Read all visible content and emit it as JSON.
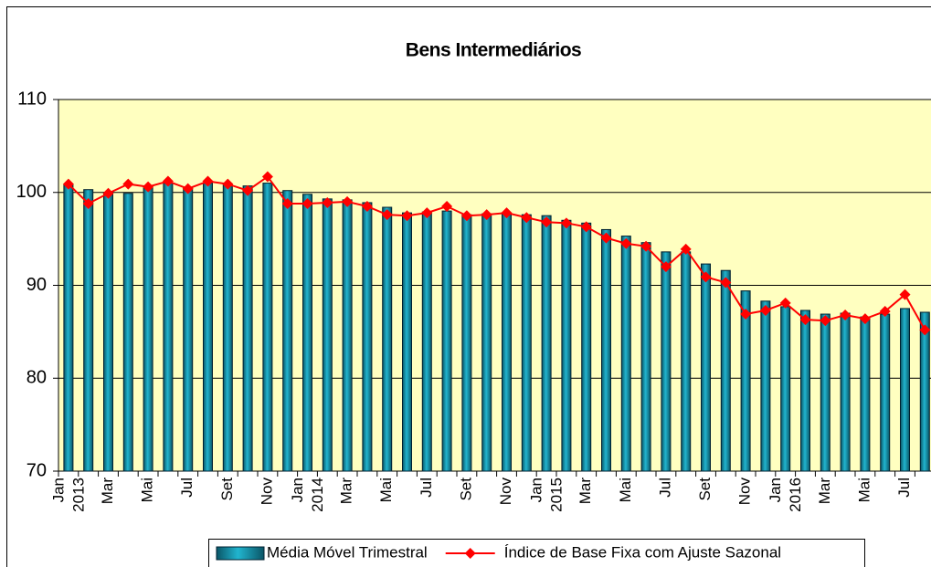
{
  "chart_data": {
    "type": "bar-line",
    "title": "Bens Intermediários",
    "categories": [
      [
        "Jan",
        "2013"
      ],
      null,
      "Mar",
      null,
      "Mai",
      null,
      "Jul",
      null,
      "Set",
      null,
      "Nov",
      null,
      [
        "Jan",
        "2014"
      ],
      null,
      "Mar",
      null,
      "Mai",
      null,
      "Jul",
      null,
      "Set",
      null,
      "Nov",
      null,
      [
        "Jan",
        "2015"
      ],
      null,
      "Mar",
      null,
      "Mai",
      null,
      "Jul",
      null,
      "Set",
      null,
      "Nov",
      null,
      [
        "Jan",
        "2016"
      ],
      null,
      "Mar",
      null,
      "Mai",
      null,
      "Jul",
      null
    ],
    "series": [
      {
        "name": "Média Móvel Trimestral",
        "type": "bar",
        "color": "#21b5cf",
        "values": [
          100.8,
          100.3,
          100.0,
          99.9,
          100.6,
          101.0,
          100.5,
          101.0,
          100.8,
          100.7,
          101.0,
          100.2,
          99.8,
          99.3,
          99.2,
          98.9,
          98.4,
          97.8,
          97.9,
          98.0,
          97.6,
          97.7,
          97.8,
          97.6,
          97.5,
          97.0,
          96.7,
          96.0,
          95.3,
          94.6,
          93.6,
          93.6,
          92.3,
          91.6,
          89.4,
          88.3,
          87.7,
          87.3,
          86.9,
          87.0,
          86.6,
          86.9,
          87.5,
          87.1
        ]
      },
      {
        "name": "Índice de Base Fixa com Ajuste Sazonal",
        "type": "line",
        "color": "#ff0000",
        "values": [
          100.9,
          98.8,
          99.9,
          100.9,
          100.6,
          101.2,
          100.4,
          101.2,
          100.9,
          100.2,
          101.7,
          98.8,
          98.8,
          98.9,
          99.0,
          98.5,
          97.6,
          97.5,
          97.8,
          98.5,
          97.5,
          97.6,
          97.8,
          97.3,
          96.8,
          96.7,
          96.3,
          95.1,
          94.5,
          94.2,
          92.0,
          93.9,
          90.9,
          90.3,
          86.9,
          87.3,
          88.1,
          86.3,
          86.2,
          86.8,
          86.4,
          87.2,
          89.0,
          85.2
        ]
      }
    ],
    "ylim": [
      70,
      110
    ],
    "yticks": [
      70,
      80,
      90,
      100,
      110
    ],
    "grid": true,
    "plot_background": "#ffffc0",
    "legend": "bottom"
  }
}
